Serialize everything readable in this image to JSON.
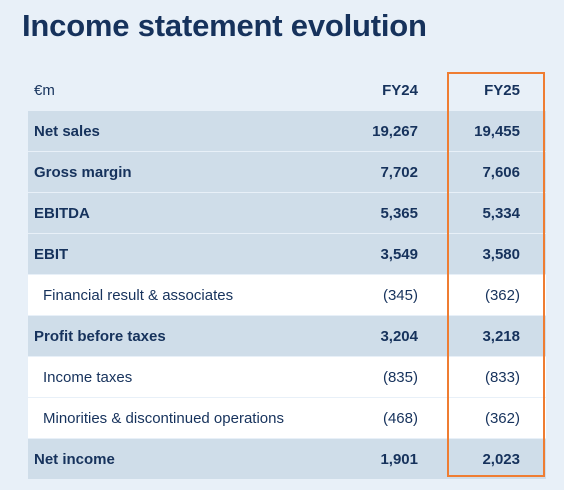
{
  "title": "Income statement evolution",
  "accent_color": "#ef7d32",
  "header": {
    "unit": "€m",
    "col1": "FY24",
    "col2": "FY25"
  },
  "rows": [
    {
      "label": "Net sales",
      "fy24": "19,267",
      "fy25": "19,455"
    },
    {
      "label": "Gross margin",
      "fy24": "7,702",
      "fy25": "7,606"
    },
    {
      "label": "EBITDA",
      "fy24": "5,365",
      "fy25": "5,334"
    },
    {
      "label": "EBIT",
      "fy24": "3,549",
      "fy25": "3,580"
    },
    {
      "label": "Financial result & associates",
      "fy24": "(345)",
      "fy25": "(362)"
    },
    {
      "label": "Profit before taxes",
      "fy24": "3,204",
      "fy25": "3,218"
    },
    {
      "label": "Income taxes",
      "fy24": "(835)",
      "fy25": "(833)"
    },
    {
      "label": "Minorities & discontinued operations",
      "fy24": "(468)",
      "fy25": "(362)"
    },
    {
      "label": "Net income",
      "fy24": "1,901",
      "fy25": "2,023"
    }
  ]
}
